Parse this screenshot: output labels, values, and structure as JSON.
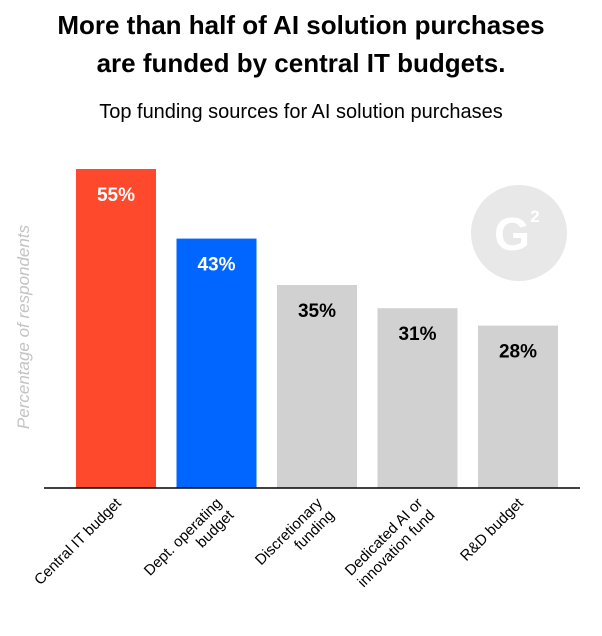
{
  "title_line1": "More than half of AI solution purchases",
  "title_line2": "are funded by central IT budgets.",
  "chart_data": {
    "type": "bar",
    "title": "More than half of AI solution purchases are funded by central IT budgets.",
    "subtitle": "Top funding sources for AI solution purchases",
    "ylabel": "Percentage of respondents",
    "xlabel": "",
    "ylim": [
      0,
      55
    ],
    "grid": false,
    "categories": [
      [
        "Central IT budget"
      ],
      [
        "Dept. operating",
        "budget"
      ],
      [
        "Discretionary",
        "funding"
      ],
      [
        "Dedicated AI or",
        "innovation fund"
      ],
      [
        "R&D budget"
      ]
    ],
    "values": [
      55,
      43,
      35,
      31,
      28
    ],
    "value_labels": [
      "55%",
      "43%",
      "35%",
      "31%",
      "28%"
    ],
    "colors": [
      "#ff492c",
      "#0066ff",
      "#d1d1d1",
      "#d1d1d1",
      "#d1d1d1"
    ],
    "label_colors": [
      "#ffffff",
      "#ffffff",
      "#000000",
      "#000000",
      "#000000"
    ]
  },
  "logo": {
    "name": "g2-logo-icon",
    "text": "G2",
    "color": "#e8e8e8"
  }
}
